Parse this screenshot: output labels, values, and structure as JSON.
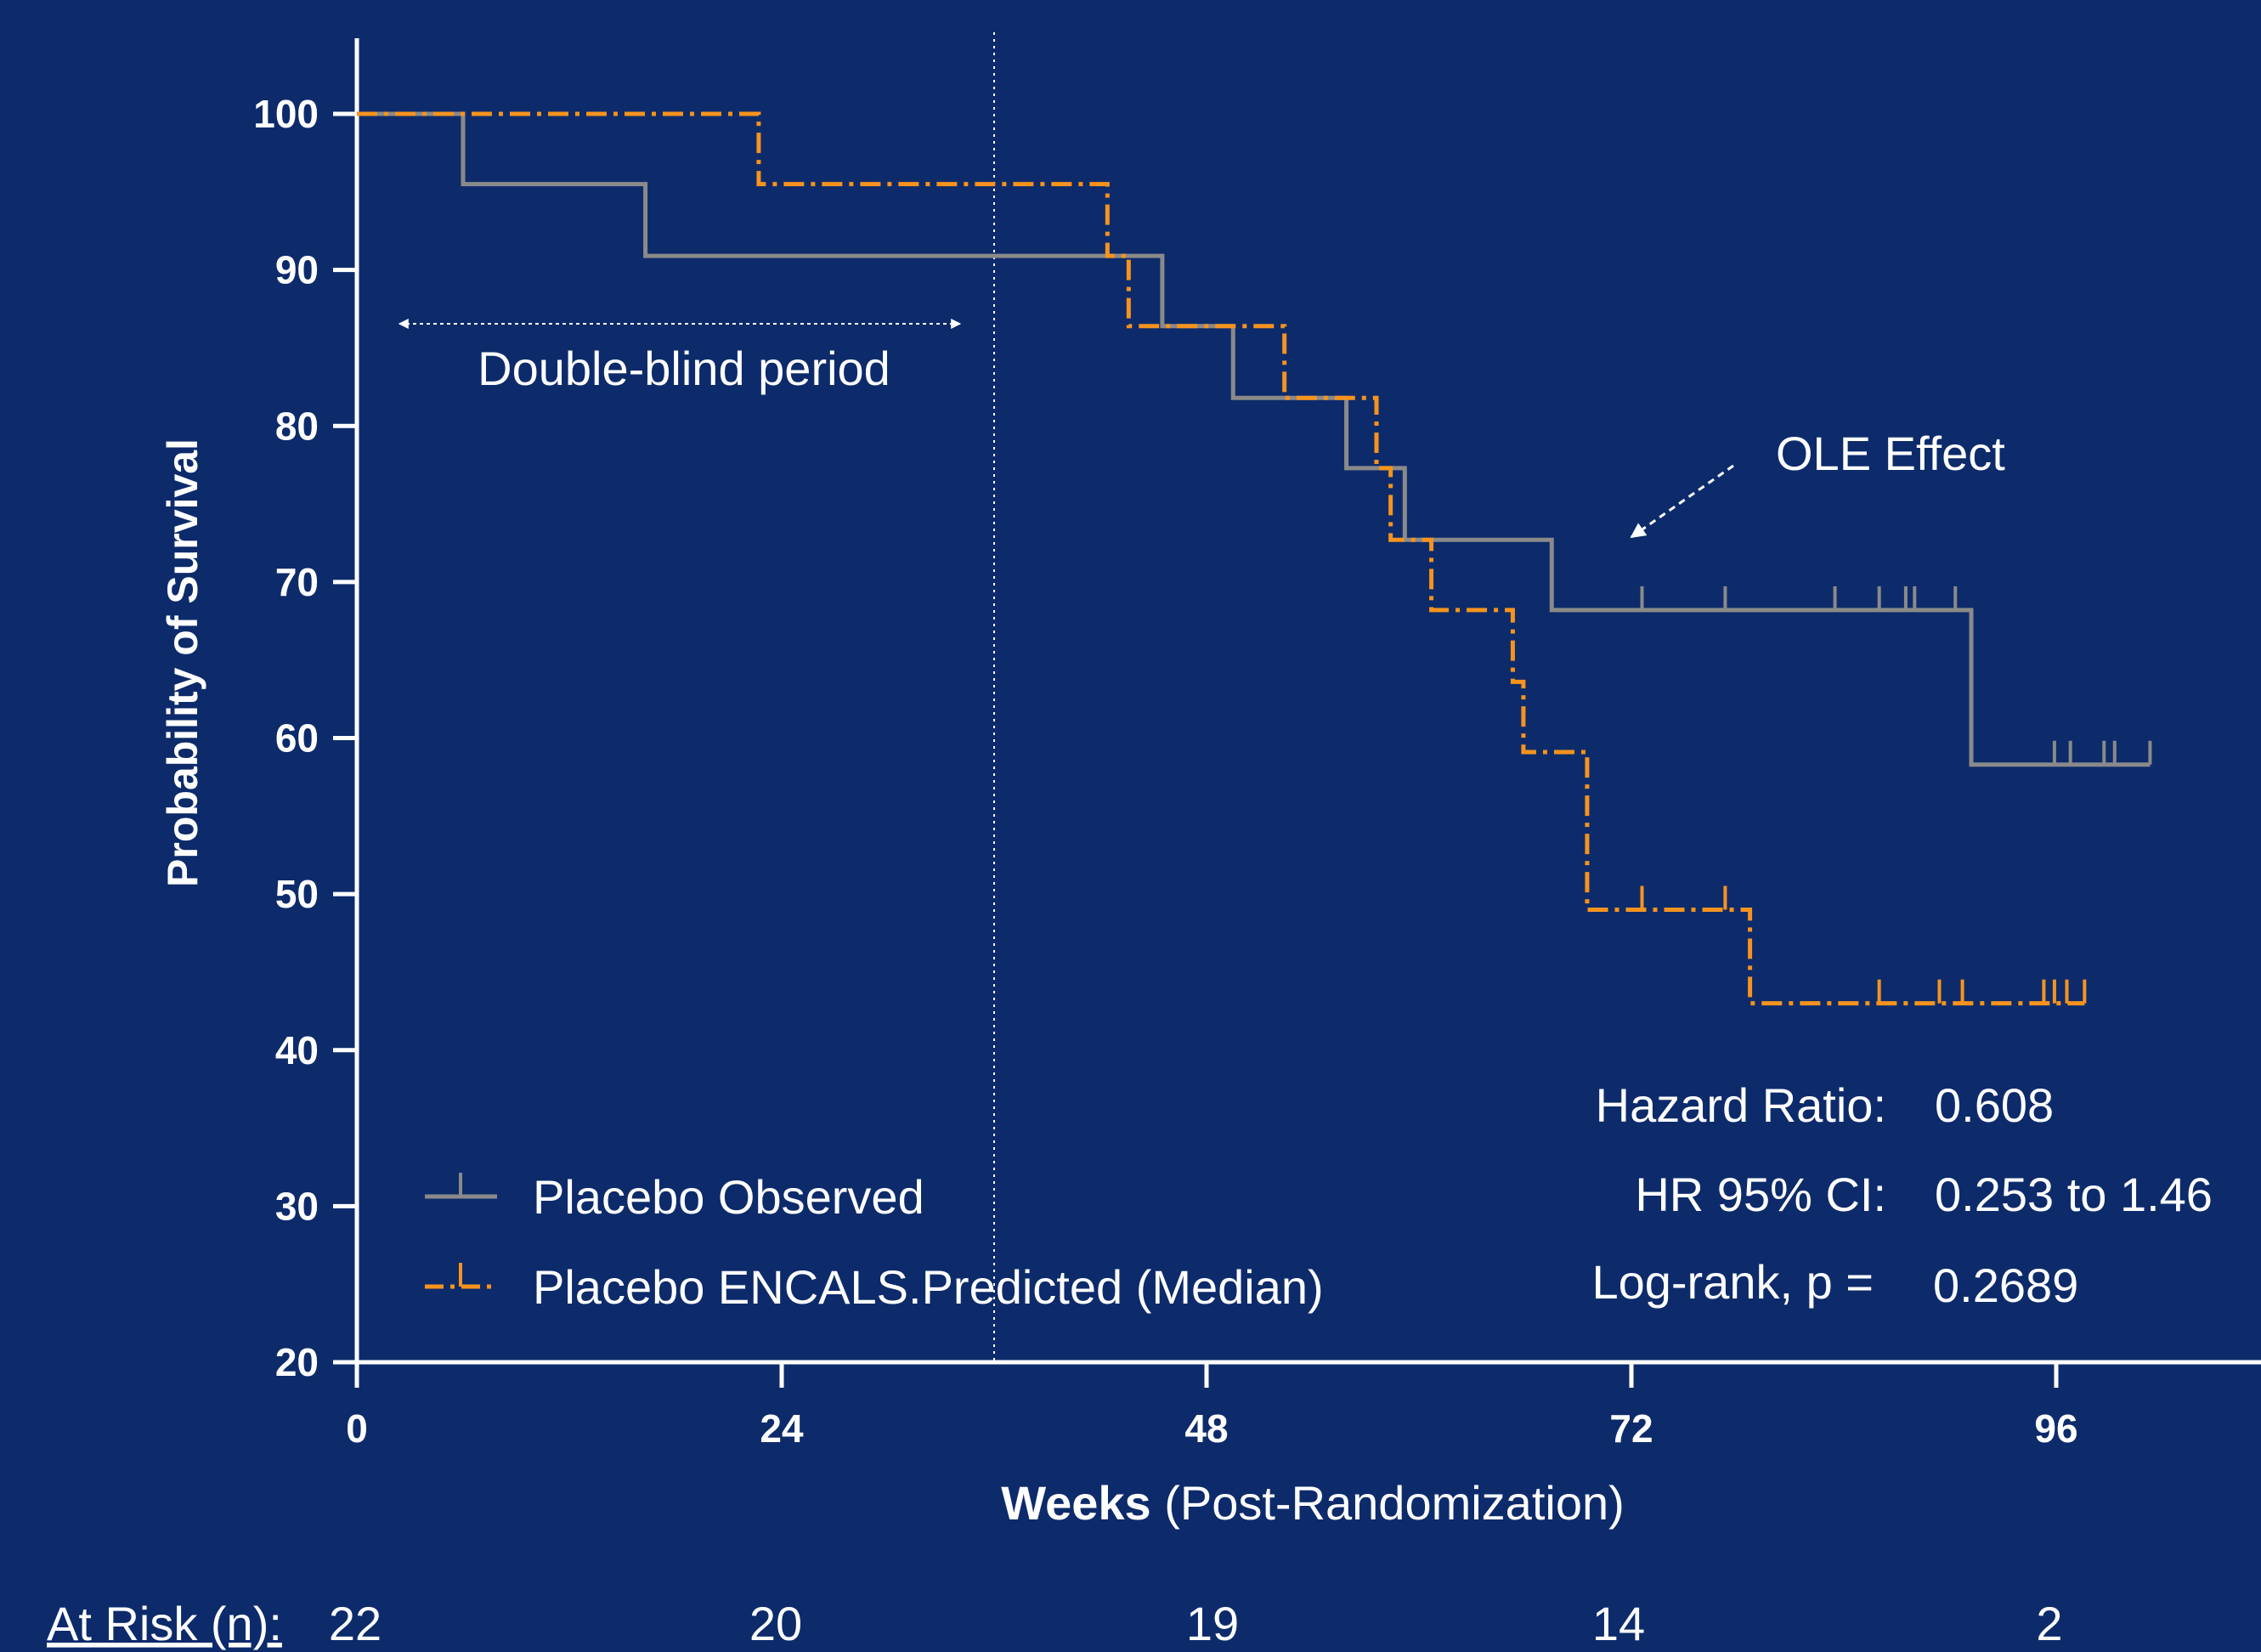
{
  "chart_data": {
    "type": "line",
    "ylabel": "Probability of Survival",
    "xlabel_bold": "Weeks",
    "xlabel_rest": " (Post-Randomization)",
    "xlim": [
      0,
      108
    ],
    "ylim": [
      20,
      105
    ],
    "x_ticks": [
      "0",
      "24",
      "48",
      "72",
      "96"
    ],
    "y_ticks": [
      "20",
      "30",
      "40",
      "50",
      "60",
      "70",
      "80",
      "90",
      "100"
    ],
    "x_tick_values": [
      0,
      24,
      48,
      72,
      96
    ],
    "y_tick_values": [
      20,
      30,
      40,
      50,
      60,
      70,
      80,
      90,
      100
    ],
    "double_blind_end": 36,
    "annotations": {
      "double_blind": "Double-blind period",
      "ole_effect": "OLE Effect"
    },
    "series": [
      {
        "name": "Placebo Observed",
        "color": "#8a8a8a",
        "style": "solid",
        "steps": [
          [
            0,
            100
          ],
          [
            6,
            95.5
          ],
          [
            16.3,
            90.9
          ],
          [
            45.5,
            86.4
          ],
          [
            49.5,
            81.8
          ],
          [
            55.9,
            77.3
          ],
          [
            59.2,
            72.7
          ],
          [
            67.5,
            68.2
          ],
          [
            91.2,
            58.3
          ],
          [
            101.3,
            58.3
          ]
        ],
        "censor": [
          72.6,
          77.3,
          83.5,
          86.0,
          87.5,
          88.0,
          90.3,
          95.9,
          96.8,
          98.7,
          99.3,
          101.3
        ]
      },
      {
        "name": "Placebo ENCALS.Predicted (Median)",
        "color": "#f7931e",
        "style": "dashdot",
        "steps": [
          [
            0,
            100
          ],
          [
            22.7,
            95.5
          ],
          [
            42.4,
            90.9
          ],
          [
            43.6,
            86.4
          ],
          [
            52.4,
            81.8
          ],
          [
            57.6,
            77.3
          ],
          [
            58.4,
            72.7
          ],
          [
            60.7,
            68.2
          ],
          [
            65.3,
            63.6
          ],
          [
            65.9,
            59.1
          ],
          [
            69.5,
            49.0
          ],
          [
            78.7,
            43.0
          ],
          [
            97.6,
            43.0
          ]
        ],
        "censor": [
          72.6,
          77.3,
          86.0,
          89.4,
          90.7,
          95.3,
          95.9,
          96.6,
          97.6
        ]
      }
    ],
    "stats": [
      {
        "label": "Hazard Ratio:",
        "value": "0.608"
      },
      {
        "label": "HR 95% CI:",
        "value": "0.253 to 1.46"
      },
      {
        "label": "Log-rank, p =",
        "value": "0.2689"
      }
    ],
    "at_risk": {
      "label": "At Risk (n):",
      "values": [
        "22",
        "20",
        "19",
        "14",
        "2"
      ]
    },
    "colors": {
      "background": "#0d2b6b",
      "axis": "#ffffff",
      "observed": "#8a8a8a",
      "predicted": "#f7931e"
    }
  }
}
